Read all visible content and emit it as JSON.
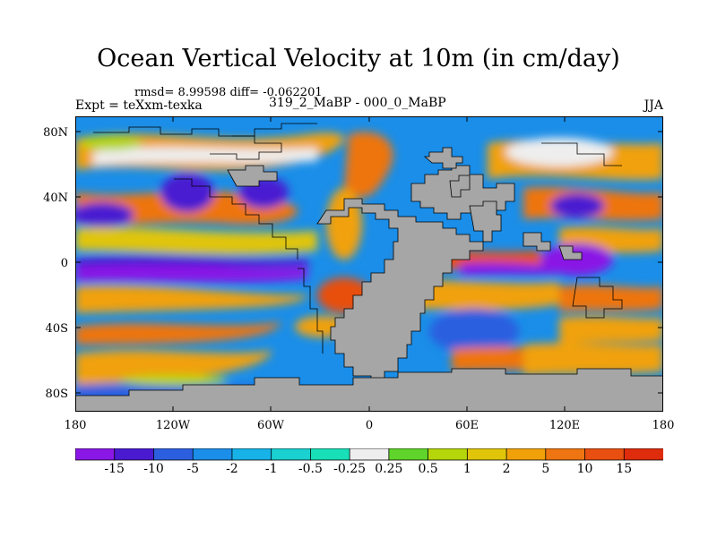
{
  "title": "Ocean Vertical Velocity at 10m (in cm/day)",
  "stats": "rmsd= 8.99598 diff= -0.062201",
  "experiment": "Expt = teXxm-texka",
  "case": "319_2_MaBP - 000_0_MaBP",
  "season": "JJA",
  "lat_ticks": [
    "80N",
    "40N",
    "0",
    "40S",
    "80S"
  ],
  "lon_ticks": [
    "180",
    "120W",
    "60W",
    "0",
    "60E",
    "120E",
    "180"
  ],
  "colorbar": {
    "labels": [
      "-15",
      "-10",
      "-5",
      "-2",
      "-1",
      "-0.5",
      "-0.25",
      "0.25",
      "0.5",
      "1",
      "2",
      "5",
      "10",
      "15"
    ],
    "colors": [
      "#8a17e6",
      "#4a1ad1",
      "#2c5fe0",
      "#1a8ee8",
      "#16b2e8",
      "#1ad0d0",
      "#18dfb8",
      "#eeeeee",
      "#5fd42a",
      "#b5d60a",
      "#e0c50a",
      "#f0a10a",
      "#ee7511",
      "#e84f10",
      "#df2c0c"
    ]
  },
  "colors": {
    "land": "#a6a6a6",
    "coast": "#000000"
  }
}
